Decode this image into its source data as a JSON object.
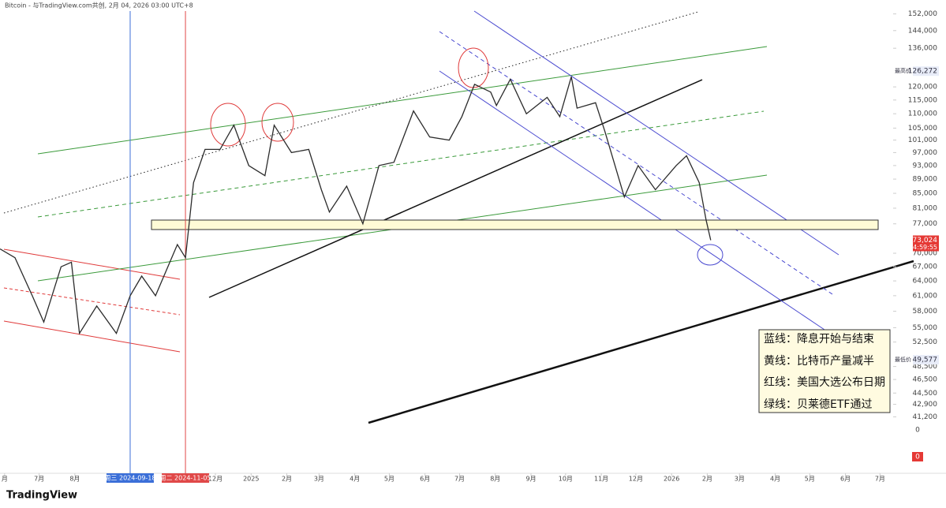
{
  "header": {
    "title": "Bitcoin - 与TradingView.com共创, 2月 04, 2026 03:00 UTC+8"
  },
  "chart_data": {
    "type": "line",
    "log_scale": true,
    "color": "#2b2b2b",
    "x": [
      "2024-05-28",
      "2024-06-10",
      "2024-06-25",
      "2024-07-05",
      "2024-07-20",
      "2024-07-29",
      "2024-08-05",
      "2024-08-20",
      "2024-09-06",
      "2024-09-18",
      "2024-09-28",
      "2024-10-10",
      "2024-10-29",
      "2024-11-05",
      "2024-11-12",
      "2024-11-22",
      "2024-12-05",
      "2024-12-17",
      "2024-12-30",
      "2025-01-13",
      "2025-01-21",
      "2025-02-05",
      "2025-02-20",
      "2025-03-03",
      "2025-03-10",
      "2025-03-25",
      "2025-04-08",
      "2025-04-22",
      "2025-05-05",
      "2025-05-22",
      "2025-06-05",
      "2025-06-22",
      "2025-07-03",
      "2025-07-14",
      "2025-07-28",
      "2025-08-02",
      "2025-08-14",
      "2025-08-28",
      "2025-09-15",
      "2025-09-26",
      "2025-10-06",
      "2025-10-11",
      "2025-10-27",
      "2025-11-04",
      "2025-11-21",
      "2025-12-03",
      "2025-12-18",
      "2026-01-05",
      "2026-01-14",
      "2026-01-25",
      "2026-01-31",
      "2026-02-04"
    ],
    "values": [
      71000,
      69000,
      61000,
      56000,
      67000,
      68000,
      54000,
      59000,
      54000,
      61000,
      65000,
      61000,
      72000,
      69000,
      88000,
      98000,
      98000,
      106000,
      93000,
      90000,
      106000,
      97000,
      98000,
      86000,
      80000,
      87000,
      77000,
      93000,
      94000,
      111000,
      102000,
      101000,
      109000,
      121000,
      118000,
      113000,
      123000,
      110000,
      116000,
      109000,
      124000,
      112000,
      114000,
      104000,
      84000,
      93000,
      86000,
      93000,
      96000,
      88000,
      78000,
      73024
    ],
    "xlim": [
      "2024-05-28",
      "2026-07-11"
    ],
    "ylim": [
      40000,
      155000
    ],
    "yticks": [
      {
        "value": 152000,
        "label": "152,000"
      },
      {
        "value": 144000,
        "label": "144,000"
      },
      {
        "value": 136000,
        "label": "136,000"
      },
      {
        "value": 120000,
        "label": "120,000"
      },
      {
        "value": 115000,
        "label": "115,000"
      },
      {
        "value": 110000,
        "label": "110,000"
      },
      {
        "value": 105000,
        "label": "105,000"
      },
      {
        "value": 101000,
        "label": "101,000"
      },
      {
        "value": 97000,
        "label": "97,000"
      },
      {
        "value": 93000,
        "label": "93,000"
      },
      {
        "value": 89000,
        "label": "89,000"
      },
      {
        "value": 85000,
        "label": "85,000"
      },
      {
        "value": 81000,
        "label": "81,000"
      },
      {
        "value": 77000,
        "label": "77,000"
      },
      {
        "value": 70000,
        "label": "70,000"
      },
      {
        "value": 67000,
        "label": "67,000"
      },
      {
        "value": 64000,
        "label": "64,000"
      },
      {
        "value": 61000,
        "label": "61,000"
      },
      {
        "value": 58000,
        "label": "58,000"
      },
      {
        "value": 55000,
        "label": "55,000"
      },
      {
        "value": 52500,
        "label": "52,500"
      },
      {
        "value": 48500,
        "label": "48,500"
      },
      {
        "value": 46500,
        "label": "46,500"
      },
      {
        "value": 44500,
        "label": "44,500"
      },
      {
        "value": 42900,
        "label": "42,900"
      },
      {
        "value": 41200,
        "label": "41,200"
      }
    ],
    "xticks": [
      {
        "value": "2024-06-01",
        "label": "月"
      },
      {
        "value": "2024-07-01",
        "label": "7月"
      },
      {
        "value": "2024-08-01",
        "label": "8月"
      },
      {
        "value": "2024-12-01",
        "label": "12月"
      },
      {
        "value": "2025-01-01",
        "label": "2025"
      },
      {
        "value": "2025-02-01",
        "label": "2月"
      },
      {
        "value": "2025-03-01",
        "label": "3月"
      },
      {
        "value": "2025-04-01",
        "label": "4月"
      },
      {
        "value": "2025-05-01",
        "label": "5月"
      },
      {
        "value": "2025-06-01",
        "label": "6月"
      },
      {
        "value": "2025-07-01",
        "label": "7月"
      },
      {
        "value": "2025-08-01",
        "label": "8月"
      },
      {
        "value": "2025-09-01",
        "label": "9月"
      },
      {
        "value": "2025-10-01",
        "label": "10月"
      },
      {
        "value": "2025-11-01",
        "label": "11月"
      },
      {
        "value": "2025-12-01",
        "label": "12月"
      },
      {
        "value": "2026-01-01",
        "label": "2026"
      },
      {
        "value": "2026-02-01",
        "label": "2月"
      },
      {
        "value": "2026-03-01",
        "label": "3月"
      },
      {
        "value": "2026-04-01",
        "label": "4月"
      },
      {
        "value": "2026-05-01",
        "label": "5月"
      },
      {
        "value": "2026-06-01",
        "label": "6月"
      },
      {
        "value": "2026-07-01",
        "label": "7月"
      }
    ],
    "markers": [
      {
        "date": "2024-09-18",
        "label": "周三 2024-09-18",
        "color": "#3b6fd8"
      },
      {
        "date": "2024-11-05",
        "label": "周二 2024-11-05",
        "color": "#e04848"
      }
    ],
    "price_labels": [
      {
        "caption": "最高价",
        "value": 126272,
        "label": "126,272",
        "color": "#e8ecf8"
      },
      {
        "caption": "最低价",
        "value": 49577,
        "label": "49,577",
        "color": "#e8ecf8"
      },
      {
        "value": 73024,
        "label": "73,024",
        "timer": "04:59:55",
        "color": "#e53935"
      }
    ],
    "annotation": [
      "蓝线：降息开始与结束",
      "黄线：比特币产量减半",
      "红线：美国大选公布日期",
      "绿线：贝莱德ETF通过"
    ]
  },
  "indicator_labels": [
    0,
    0
  ],
  "footer": {
    "brand": "TradingView"
  }
}
